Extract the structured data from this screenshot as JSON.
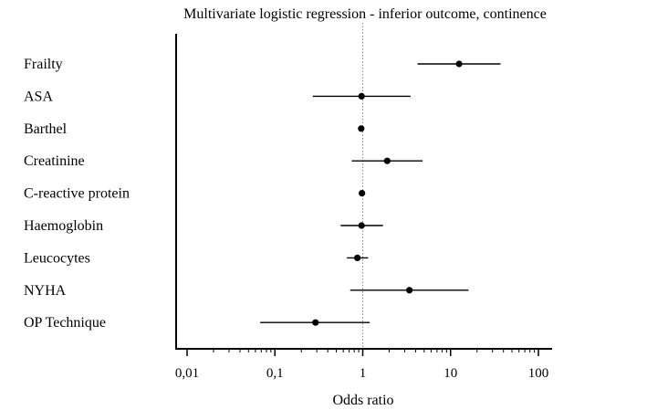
{
  "chart_data": {
    "type": "forest",
    "title": "Multivariate logistic regression - inferior outcome, continence",
    "xlabel": "Odds ratio",
    "ylabel": "",
    "x_scale": "log10",
    "xlim": [
      0.007,
      160
    ],
    "x_ticks": [
      0.01,
      0.1,
      1,
      10,
      100
    ],
    "x_tick_labels": [
      "0,01",
      "0,1",
      "1",
      "10",
      "100"
    ],
    "reference_line": 1,
    "variables": [
      {
        "label": "Frailty",
        "or": 12.5,
        "ci_low": 4.2,
        "ci_high": 37
      },
      {
        "label": "ASA",
        "or": 0.97,
        "ci_low": 0.27,
        "ci_high": 3.5
      },
      {
        "label": "Barthel",
        "or": 0.96,
        "ci_low": 0.94,
        "ci_high": 0.98
      },
      {
        "label": "Creatinine",
        "or": 1.9,
        "ci_low": 0.75,
        "ci_high": 4.8
      },
      {
        "label": "C-reactive protein",
        "or": 0.98,
        "ci_low": 0.96,
        "ci_high": 1.01
      },
      {
        "label": "Haemoglobin",
        "or": 0.97,
        "ci_low": 0.56,
        "ci_high": 1.7
      },
      {
        "label": "Leucocytes",
        "or": 0.87,
        "ci_low": 0.66,
        "ci_high": 1.15
      },
      {
        "label": "NYHA",
        "or": 3.4,
        "ci_low": 0.72,
        "ci_high": 16
      },
      {
        "label": "OP Technique",
        "or": 0.29,
        "ci_low": 0.068,
        "ci_high": 1.2
      }
    ]
  }
}
